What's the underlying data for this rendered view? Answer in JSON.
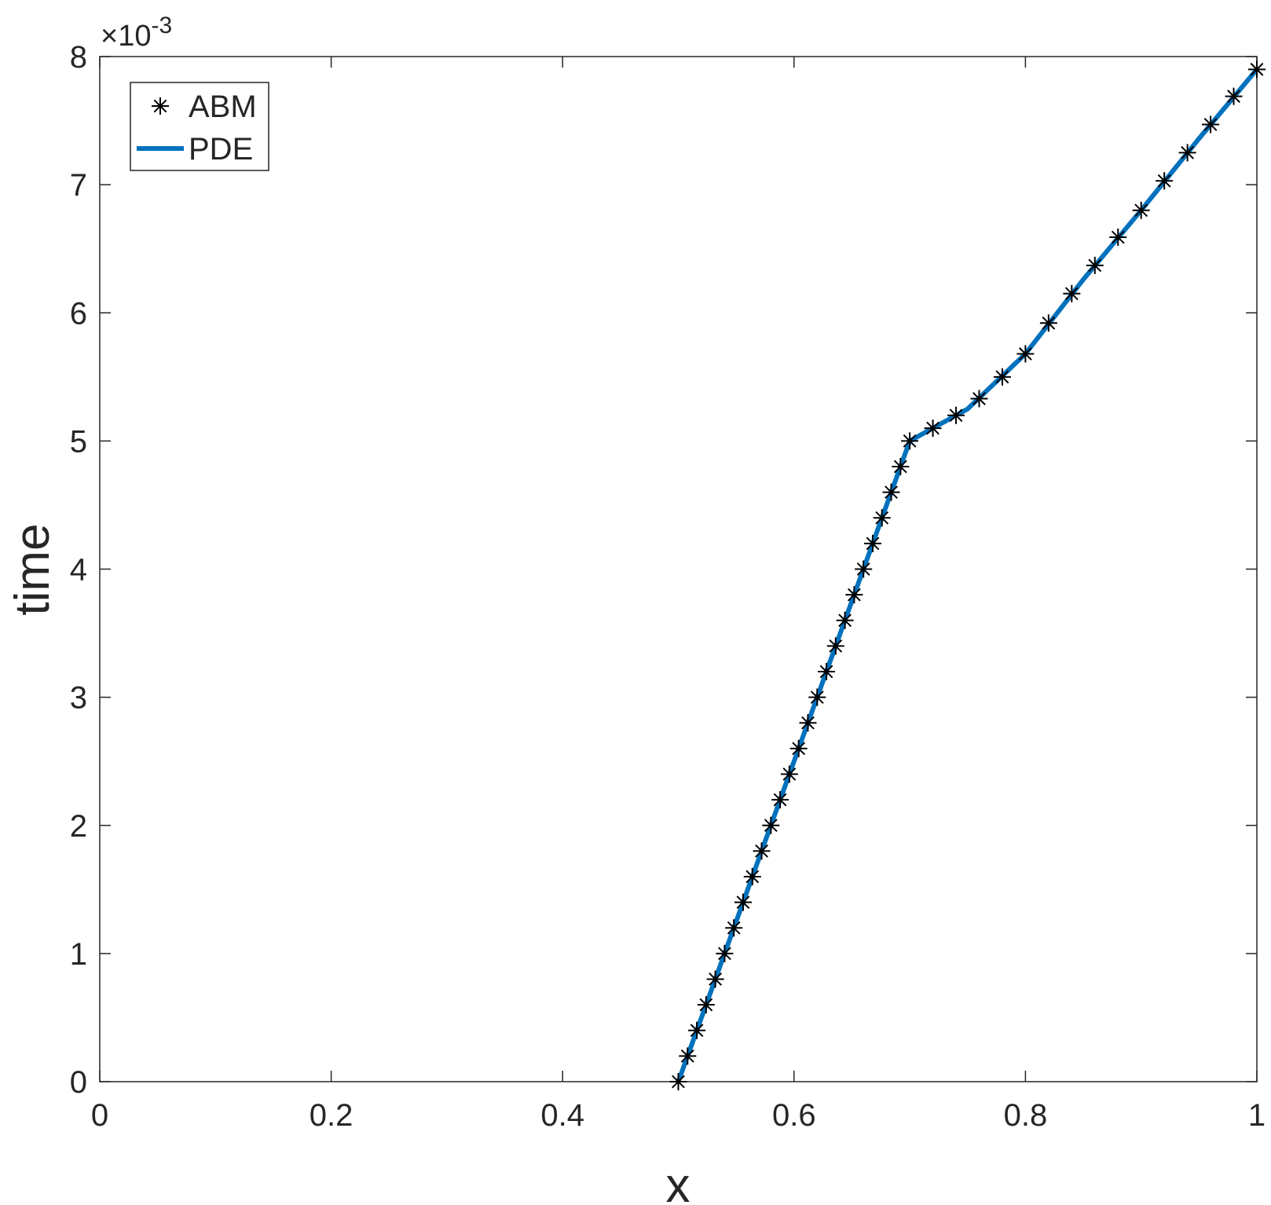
{
  "chart_data": {
    "type": "line",
    "xlabel": "x",
    "ylabel": "time",
    "y_multiplier": {
      "base": "×10",
      "exponent": "-3"
    },
    "xlim": [
      0,
      1
    ],
    "xticks": [
      0,
      0.2,
      0.4,
      0.6,
      0.8,
      1
    ],
    "ylim": [
      0,
      8
    ],
    "yticks": [
      0,
      1,
      2,
      3,
      4,
      5,
      6,
      7,
      8
    ],
    "legend": "top-left",
    "series": [
      {
        "name": "ABM",
        "color": "#000000",
        "marker": "asterisk",
        "x": [
          0.5,
          0.508,
          0.516,
          0.524,
          0.532,
          0.54,
          0.548,
          0.556,
          0.564,
          0.572,
          0.58,
          0.588,
          0.596,
          0.604,
          0.612,
          0.62,
          0.628,
          0.636,
          0.644,
          0.652,
          0.66,
          0.668,
          0.676,
          0.684,
          0.692,
          0.7,
          0.72,
          0.74,
          0.76,
          0.78,
          0.8,
          0.82,
          0.84,
          0.86,
          0.88,
          0.9,
          0.92,
          0.94,
          0.96,
          0.98,
          1.0
        ],
        "values": [
          0,
          0.2,
          0.4,
          0.6,
          0.8,
          1.0,
          1.2,
          1.4,
          1.6,
          1.8,
          2.0,
          2.2,
          2.4,
          2.6,
          2.8,
          3.0,
          3.2,
          3.4,
          3.6,
          3.8,
          4.0,
          4.2,
          4.4,
          4.6,
          4.8,
          5.0,
          5.1,
          5.2,
          5.33,
          5.5,
          5.68,
          5.92,
          6.15,
          6.37,
          6.59,
          6.8,
          7.03,
          7.25,
          7.47,
          7.69,
          7.9
        ]
      },
      {
        "name": "PDE",
        "color": "#0072bd",
        "x": [
          0.5,
          0.7,
          0.75,
          0.8,
          0.85,
          0.9,
          0.95,
          1.0
        ],
        "values": [
          0,
          5,
          5.25,
          5.68,
          6.26,
          6.8,
          7.36,
          7.9
        ]
      }
    ]
  }
}
